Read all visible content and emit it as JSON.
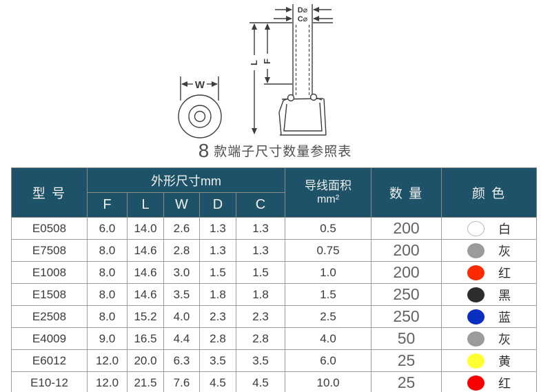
{
  "diagram": {
    "labels": {
      "w": "W",
      "l": "L",
      "f": "F",
      "d": "D⌀",
      "c": "C⌀"
    },
    "line_color": "#3c3c3c"
  },
  "title": {
    "prefix": "8",
    "text": "款端子尺寸数量参照表"
  },
  "table": {
    "header": {
      "model": "型 号",
      "dims_group": "外形尺寸mm",
      "dim_cols": [
        "F",
        "L",
        "W",
        "D",
        "C"
      ],
      "area_line1": "导线面积",
      "area_line2": "mm²",
      "qty": "数 量",
      "color": "颜 色",
      "bg": "#1d5268",
      "text_color": "#f1f1f1"
    },
    "rows": [
      {
        "model": "E0508",
        "f": "6.0",
        "l": "14.0",
        "w": "2.6",
        "d": "1.3",
        "c": "1.3",
        "area": "0.5",
        "qty": "200",
        "color_name": "白",
        "color_hex": "#ffffff"
      },
      {
        "model": "E7508",
        "f": "8.0",
        "l": "14.6",
        "w": "2.8",
        "d": "1.3",
        "c": "1.3",
        "area": "0.75",
        "qty": "200",
        "color_name": "灰",
        "color_hex": "#9b9b9b"
      },
      {
        "model": "E1008",
        "f": "8.0",
        "l": "14.6",
        "w": "3.0",
        "d": "1.5",
        "c": "1.5",
        "area": "1.0",
        "qty": "200",
        "color_name": "红",
        "color_hex": "#ff2b00"
      },
      {
        "model": "E1508",
        "f": "8.0",
        "l": "14.6",
        "w": "3.5",
        "d": "1.8",
        "c": "1.8",
        "area": "1.5",
        "qty": "250",
        "color_name": "黑",
        "color_hex": "#2d2d2d"
      },
      {
        "model": "E2508",
        "f": "8.0",
        "l": "15.2",
        "w": "4.0",
        "d": "2.3",
        "c": "2.3",
        "area": "2.5",
        "qty": "250",
        "color_name": "蓝",
        "color_hex": "#0b2fbe"
      },
      {
        "model": "E4009",
        "f": "9.0",
        "l": "16.5",
        "w": "4.4",
        "d": "2.8",
        "c": "2.8",
        "area": "4.0",
        "qty": "50",
        "color_name": "灰",
        "color_hex": "#9b9b9b"
      },
      {
        "model": "E6012",
        "f": "12.0",
        "l": "20.0",
        "w": "6.3",
        "d": "3.5",
        "c": "3.5",
        "area": "6.0",
        "qty": "25",
        "color_name": "黄",
        "color_hex": "#ffff32"
      },
      {
        "model": "E10-12",
        "f": "12.0",
        "l": "21.5",
        "w": "7.6",
        "d": "4.5",
        "c": "4.5",
        "area": "10.0",
        "qty": "25",
        "color_name": "红",
        "color_hex": "#fb0000"
      }
    ]
  }
}
